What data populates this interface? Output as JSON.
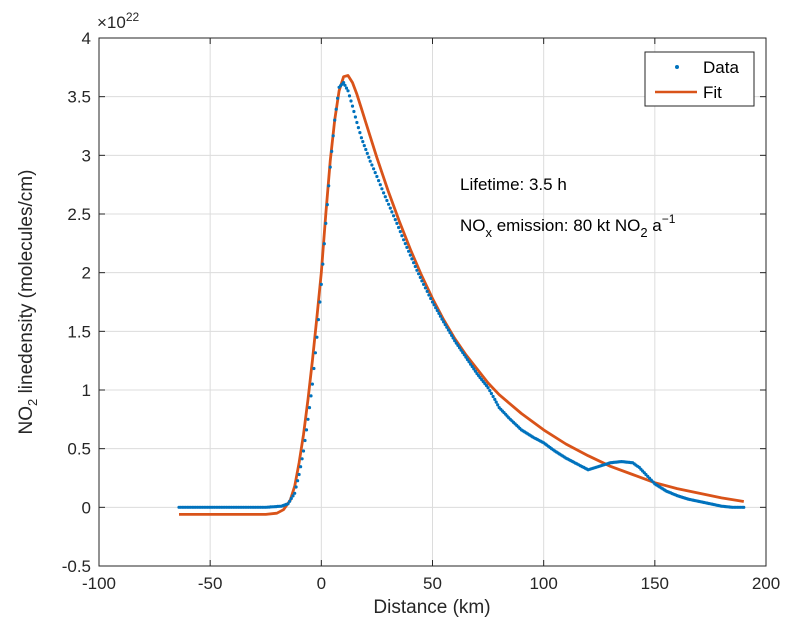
{
  "chart_data": {
    "type": "scatter",
    "xlabel": "Distance (km)",
    "ylabel_main": "NO",
    "ylabel_sub": "2",
    "ylabel_rest": " linedensity (molecules/cm)",
    "exponent_base": "×10",
    "exponent_power": "22",
    "xlim": [
      -100,
      200
    ],
    "ylim": [
      -0.5,
      4
    ],
    "xticks": [
      -100,
      -50,
      0,
      50,
      100,
      150,
      200
    ],
    "yticks": [
      -0.5,
      0,
      0.5,
      1,
      1.5,
      2,
      2.5,
      3,
      3.5,
      4
    ],
    "xtick_labels": [
      "-100",
      "-50",
      "0",
      "50",
      "100",
      "150",
      "200"
    ],
    "ytick_labels": [
      "-0.5",
      "0",
      "0.5",
      "1",
      "1.5",
      "2",
      "2.5",
      "3",
      "3.5",
      "4"
    ],
    "grid": true,
    "legend_position": "top-right",
    "series": [
      {
        "name": "Data",
        "kind": "points",
        "color": "#0072BD",
        "x": [
          -64,
          -55,
          -45,
          -35,
          -25,
          -18,
          -15,
          -12,
          -10,
          -8,
          -6,
          -4,
          -2,
          0,
          2,
          4,
          6,
          8,
          10,
          12,
          14,
          16,
          18,
          20,
          22,
          25,
          28,
          31,
          34,
          37,
          40,
          43,
          46,
          50,
          55,
          60,
          65,
          70,
          75,
          78,
          80,
          85,
          90,
          95,
          100,
          105,
          110,
          115,
          118,
          120,
          125,
          130,
          135,
          140,
          143,
          146,
          150,
          155,
          160,
          165,
          170,
          175,
          180,
          185,
          190
        ],
        "y": [
          0.0,
          0.0,
          0.0,
          0.0,
          0.0,
          0.01,
          0.03,
          0.12,
          0.28,
          0.48,
          0.75,
          1.05,
          1.45,
          1.9,
          2.42,
          2.9,
          3.3,
          3.58,
          3.62,
          3.55,
          3.42,
          3.28,
          3.15,
          3.05,
          2.95,
          2.82,
          2.68,
          2.55,
          2.42,
          2.28,
          2.15,
          2.02,
          1.9,
          1.75,
          1.58,
          1.42,
          1.28,
          1.14,
          1.02,
          0.92,
          0.85,
          0.75,
          0.66,
          0.6,
          0.55,
          0.48,
          0.42,
          0.37,
          0.34,
          0.32,
          0.35,
          0.38,
          0.39,
          0.38,
          0.34,
          0.28,
          0.2,
          0.14,
          0.1,
          0.07,
          0.05,
          0.03,
          0.01,
          0.0,
          0.0
        ]
      },
      {
        "name": "Fit",
        "kind": "line",
        "color": "#D95319",
        "x": [
          -64,
          -40,
          -25,
          -20,
          -17,
          -14,
          -12,
          -10,
          -8,
          -6,
          -4,
          -2,
          0,
          2,
          4,
          6,
          8,
          10,
          12,
          14,
          16,
          18,
          20,
          25,
          30,
          35,
          40,
          45,
          50,
          55,
          60,
          65,
          70,
          75,
          80,
          90,
          100,
          110,
          120,
          130,
          140,
          150,
          160,
          170,
          180,
          190
        ],
        "y": [
          -0.06,
          -0.06,
          -0.06,
          -0.05,
          -0.02,
          0.06,
          0.18,
          0.38,
          0.62,
          0.92,
          1.25,
          1.62,
          2.0,
          2.5,
          2.95,
          3.3,
          3.55,
          3.67,
          3.68,
          3.62,
          3.52,
          3.4,
          3.28,
          2.98,
          2.7,
          2.44,
          2.2,
          1.98,
          1.78,
          1.6,
          1.44,
          1.3,
          1.18,
          1.06,
          0.96,
          0.8,
          0.66,
          0.54,
          0.44,
          0.35,
          0.28,
          0.21,
          0.16,
          0.12,
          0.08,
          0.05
        ]
      }
    ],
    "annotations": {
      "lifetime": "Lifetime: 3.5 h",
      "emission_a": "NO",
      "emission_x": "x",
      "emission_b": " emission: 80 kt NO",
      "emission_2": "2",
      "emission_c": " a",
      "emission_exp": "−1"
    }
  }
}
